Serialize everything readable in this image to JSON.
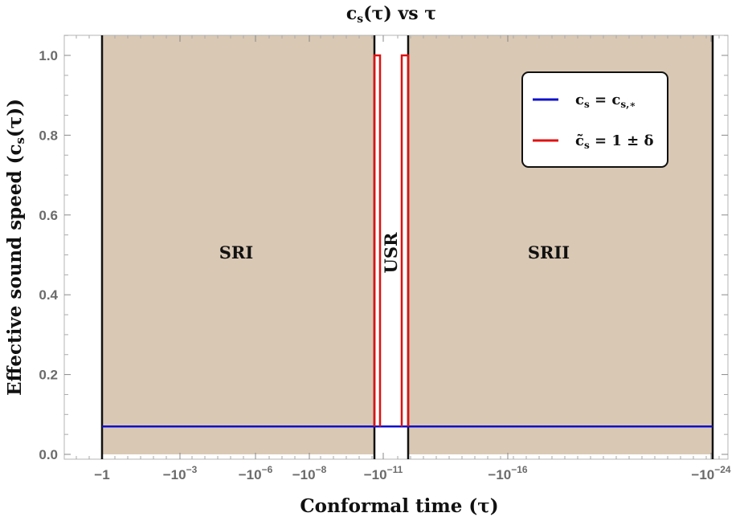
{
  "chart_data": {
    "type": "line",
    "title": "c_s(τ) vs τ",
    "xlabel": "Conformal time (τ)",
    "ylabel": "Effective sound speed (c_s(τ))",
    "ylim": [
      0,
      1.05
    ],
    "x_ticks": [
      "-1",
      "-10^-3",
      "-10^-6",
      "-10^-8",
      "-10^-11",
      "-10^-16",
      "-10^-24"
    ],
    "y_ticks": [
      "0.0",
      "0.2",
      "0.4",
      "0.6",
      "0.8",
      "1.0"
    ],
    "regions": [
      {
        "name": "SRI",
        "shaded": true,
        "color": "#d9c8b4"
      },
      {
        "name": "USR",
        "shaded": false,
        "color": "#ffffff"
      },
      {
        "name": "SRII",
        "shaded": true,
        "color": "#d9c8b4"
      }
    ],
    "series": [
      {
        "name": "c_s = c_s,*",
        "color": "#1010cc",
        "segments": [
          {
            "region": "SRI",
            "y": 0.07
          },
          {
            "region": "USR",
            "y": 0.07
          },
          {
            "region": "SRII",
            "y": 0.07
          }
        ]
      },
      {
        "name": "c̃_s = 1 ± δ",
        "color": "#e01010",
        "pulses": [
          {
            "at": "SRI/USR boundary",
            "low": 0.07,
            "high": 1.0
          },
          {
            "at": "USR/SRII boundary",
            "low": 0.07,
            "high": 1.0
          }
        ]
      }
    ],
    "legend_position": "top-right",
    "grid": false
  },
  "text": {
    "title": "c",
    "title_sub": "s",
    "title_rest": "(τ) vs τ",
    "xlabel": "Conformal time (τ)",
    "ylabel_main": "Effective sound speed (c",
    "ylabel_sub": "s",
    "ylabel_end": "(τ))",
    "legend_blue_main": "c",
    "legend_blue_sub": "s",
    "legend_blue_eq": " = c",
    "legend_blue_sub2": "s,∗",
    "legend_red_main": "c̃",
    "legend_red_sub": "s",
    "legend_red_eq": " = 1 ± δ"
  }
}
